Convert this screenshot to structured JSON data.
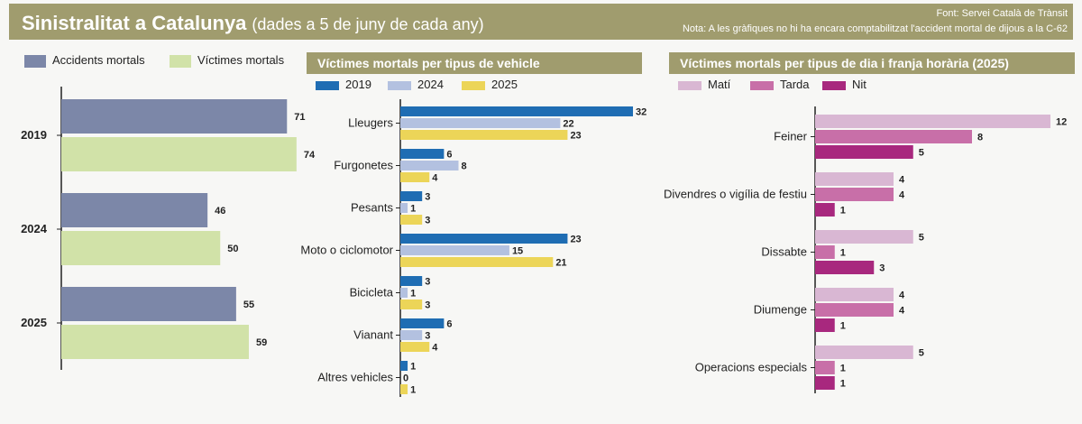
{
  "header": {
    "title": "Sinistralitat a Catalunya",
    "subtitle": "(dades a 5 de juny de cada any)",
    "source": "Font: Servei Català de Trànsit",
    "note": "Nota: A les gràfiques no hi ha encara comptabilitzat l'accident mortal de dijous a la C-62"
  },
  "chart_data": [
    {
      "type": "bar",
      "orientation": "horizontal",
      "categories": [
        "2019",
        "2024",
        "2025"
      ],
      "series": [
        {
          "name": "Accidents mortals",
          "color": "#7c87a8",
          "values": [
            71,
            46,
            55
          ]
        },
        {
          "name": "Víctimes mortals",
          "color": "#d1e2a8",
          "values": [
            74,
            50,
            59
          ]
        }
      ],
      "xlim": [
        0,
        80
      ],
      "grid": false,
      "legend": "top"
    },
    {
      "type": "bar",
      "orientation": "horizontal",
      "title": "Víctimes mortals per tipus de vehicle",
      "categories": [
        "Lleugers",
        "Furgonetes",
        "Pesants",
        "Moto o ciclomotor",
        "Bicicleta",
        "Vianant",
        "Altres vehicles"
      ],
      "series": [
        {
          "name": "2019",
          "color": "#1f6db3",
          "values": [
            32,
            6,
            3,
            23,
            3,
            6,
            1
          ]
        },
        {
          "name": "2024",
          "color": "#b3c1e0",
          "values": [
            22,
            8,
            1,
            15,
            1,
            3,
            0
          ]
        },
        {
          "name": "2025",
          "color": "#ecd558",
          "values": [
            23,
            4,
            3,
            21,
            3,
            4,
            1
          ]
        }
      ],
      "xlim": [
        0,
        32
      ],
      "grid": false,
      "legend": "top"
    },
    {
      "type": "bar",
      "orientation": "horizontal",
      "title": "Víctimes mortals per tipus de dia i franja horària (2025)",
      "categories": [
        "Feiner",
        "Divendres o vigília de festiu",
        "Dissabte",
        "Diumenge",
        "Operacions especials"
      ],
      "series": [
        {
          "name": "Matí",
          "color": "#d9b7d3",
          "values": [
            12,
            4,
            5,
            4,
            5
          ]
        },
        {
          "name": "Tarda",
          "color": "#c86fa8",
          "values": [
            8,
            4,
            1,
            4,
            1
          ]
        },
        {
          "name": "Nit",
          "color": "#a8287e",
          "values": [
            5,
            1,
            3,
            1,
            1
          ]
        }
      ],
      "xlim": [
        0,
        12
      ],
      "grid": false,
      "legend": "top"
    }
  ]
}
